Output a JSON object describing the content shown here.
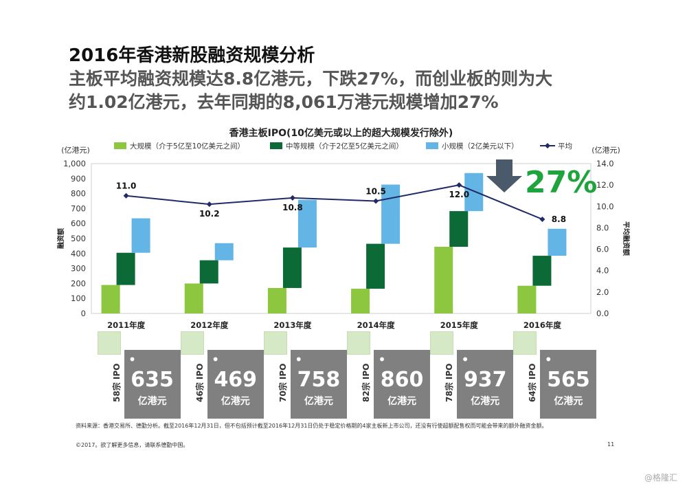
{
  "headline": {
    "line1": "2016年香港新股融资规模分析",
    "line2a": "主板平均融资规模达8.8亿港元，下跌27%，而创业板的则为大",
    "line2b": "约1.02亿港元，去年同期的8,061万港元规模增加27%"
  },
  "colors": {
    "large": "#8dc63f",
    "medium": "#0b6a35",
    "small": "#62b5e5",
    "average": "#1f2a66",
    "callout_arrow": "#4a5a6a",
    "callout_text": "#1fa33c"
  },
  "chart_data": {
    "type": "bar",
    "title": "香港主板IPO(10亿美元或以上的超大规模发行除外)",
    "ylabel_left": "融资额",
    "ylabel_right": "平均融资额",
    "yunit_left": "(亿港元)",
    "yunit_right": "(亿港元)",
    "ylim_left": [
      0,
      1000
    ],
    "ylim_right": [
      0,
      14
    ],
    "yticks_left": [
      "0",
      "100",
      "200",
      "300",
      "400",
      "500",
      "600",
      "700",
      "800",
      "900",
      "1,000"
    ],
    "yticks_right": [
      "0.0",
      "2.0",
      "4.0",
      "6.0",
      "8.0",
      "10.0",
      "12.0",
      "14.0"
    ],
    "categories": [
      "2011年度",
      "2012年度",
      "2013年度",
      "2014年度",
      "2015年度",
      "2016年度"
    ],
    "legend": [
      "大规模（介于5亿至10亿美元之间）",
      "中等规模（介于2亿至5亿美元之间）",
      "小规模（2亿美元以下）",
      "平均"
    ],
    "legend_position": "top",
    "grid": false,
    "series": [
      {
        "name": "大规模（介于5亿至10亿美元之间）",
        "values": [
          190,
          200,
          170,
          165,
          445,
          185
        ]
      },
      {
        "name": "中等规模（介于2亿至5亿美元之间）",
        "values": [
          215,
          155,
          270,
          300,
          238,
          200
        ]
      },
      {
        "name": "小规模（2亿美元以下）",
        "values": [
          230,
          114,
          318,
          395,
          254,
          180
        ]
      },
      {
        "name": "平均",
        "axis": "right",
        "values": [
          11.0,
          10.2,
          10.8,
          10.5,
          12.0,
          8.8
        ],
        "labels": [
          "11.0",
          "10.2",
          "10.8",
          "10.5",
          "12.0",
          "8.8"
        ]
      }
    ],
    "callout": "27%"
  },
  "cards": [
    {
      "total": "635",
      "unit": "亿港元",
      "count": "58宗 IPO"
    },
    {
      "total": "469",
      "unit": "亿港元",
      "count": "46宗 IPO"
    },
    {
      "total": "758",
      "unit": "亿港元",
      "count": "70宗 IPO"
    },
    {
      "total": "860",
      "unit": "亿港元",
      "count": "82宗 IPO"
    },
    {
      "total": "937",
      "unit": "亿港元",
      "count": "78宗 IPO"
    },
    {
      "total": "565",
      "unit": "亿港元",
      "count": "64宗 IPO"
    }
  ],
  "source": "资料来源：香港交易所、德勤分析。截至2016年12月31日，但不包括预计截至2016年12月31日仍处于稳定价格期的4家主板新上市公司，还没有行使超额配售权而可能会带来的额外融资金额。",
  "footer": "©2017。欲了解更多信息，请联系德勤中国。",
  "page_number": "11",
  "watermark": "@格隆汇"
}
